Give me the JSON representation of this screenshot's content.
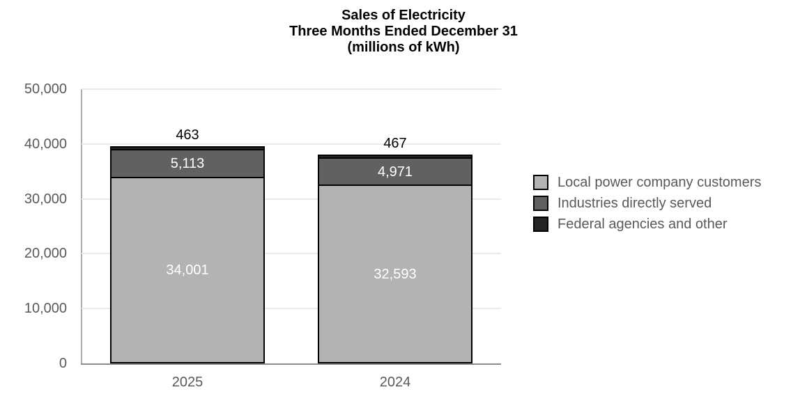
{
  "chart_data": {
    "type": "bar",
    "stacked": true,
    "title_lines": [
      "Sales of Electricity",
      "Three Months Ended December 31",
      "(millions of kWh)"
    ],
    "categories": [
      "2025",
      "2024"
    ],
    "series": [
      {
        "name": "Local power company customers",
        "values": [
          34001,
          32593
        ],
        "labels": [
          "34,001",
          "32,593"
        ],
        "color": "#B3B3B3",
        "label_color": "#FFFFFF",
        "label_position": "inside"
      },
      {
        "name": "Industries directly served",
        "values": [
          5113,
          4971
        ],
        "labels": [
          "5,113",
          "4,971"
        ],
        "color": "#616161",
        "label_color": "#FFFFFF",
        "label_position": "inside"
      },
      {
        "name": "Federal agencies and other",
        "values": [
          463,
          467
        ],
        "labels": [
          "463",
          "467"
        ],
        "color": "#262626",
        "label_color": "#000000",
        "label_position": "above"
      }
    ],
    "ylim": [
      0,
      50000
    ],
    "y_tick_labels": [
      "0",
      "10,000",
      "20,000",
      "30,000",
      "40,000",
      "50,000"
    ],
    "grid": "horizontal",
    "legend_position": "right",
    "xlabel": "",
    "ylabel": ""
  },
  "colors": {
    "axis_line": "#ABABAB",
    "baseline": "#8C8C8C",
    "gridline": "#EBEBEB",
    "tick_text": "#595959",
    "legend_text": "#595959",
    "bar_border": "#000000",
    "background": "#FFFFFF"
  }
}
